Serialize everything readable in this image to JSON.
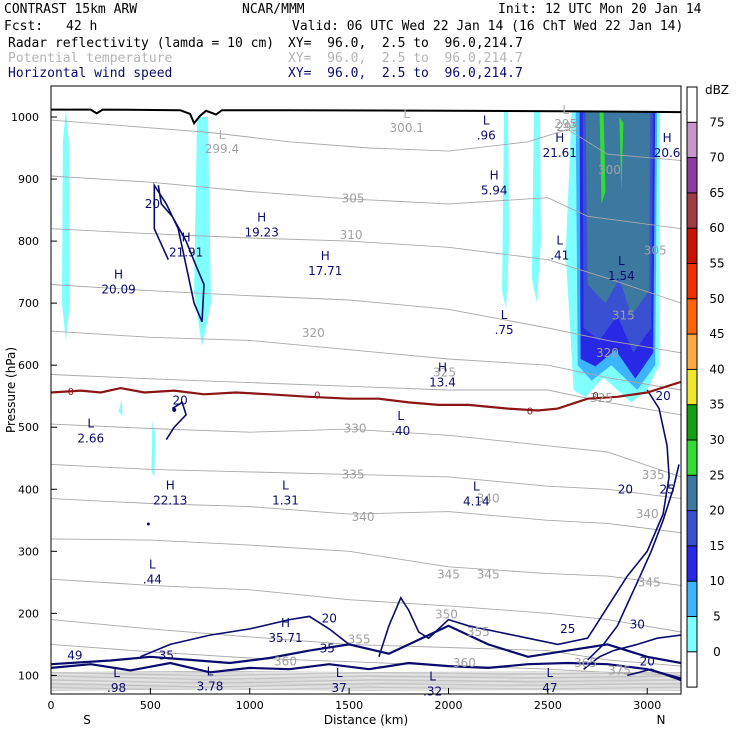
{
  "header": {
    "model": "CONTRAST 15km ARW",
    "org": "NCAR/MMM",
    "init": "Init: 12 UTC Mon 20 Jan 14",
    "fcst_label": "Fcst:",
    "fcst_value": "42 h",
    "valid": "Valid: 06 UTC Wed 22 Jan 14 (16 ChT Wed 22 Jan 14)",
    "fields": [
      {
        "name": "Radar reflectivity (lamda = 10 cm)",
        "xy": "XY=  96.0,  2.5 to  96.0,214.7"
      },
      {
        "name": "Potential temperature",
        "xy": "XY=  96.0,  2.5 to  96.0,214.7"
      },
      {
        "name": "Horizontal wind speed",
        "xy": "XY=  96.0,  2.5 to  96.0,214.7"
      }
    ]
  },
  "chart_data": {
    "type": "cross-section",
    "xlabel": "Distance (km)",
    "ylabel": "Pressure (hPa)",
    "xlim": [
      0,
      3170
    ],
    "ylim": [
      1050,
      70
    ],
    "x_ticks": [
      0,
      500,
      1000,
      1500,
      2000,
      2500,
      3000
    ],
    "y_ticks": [
      100,
      200,
      300,
      400,
      500,
      600,
      700,
      800,
      900,
      1000
    ],
    "x_end_labels": {
      "left": "S",
      "right": "N"
    },
    "colorbar": {
      "unit": "dBZ",
      "levels": [
        0,
        5,
        10,
        15,
        20,
        25,
        30,
        35,
        40,
        45,
        50,
        55,
        60,
        65,
        70,
        75
      ],
      "colors": [
        "#ffffff",
        "#80ffff",
        "#3cb4ff",
        "#2828e6",
        "#3a50d2",
        "#3c78a0",
        "#32dc32",
        "#12a012",
        "#f0e632",
        "#ffaa46",
        "#ff6400",
        "#f03200",
        "#c81400",
        "#a03c46",
        "#8c3ca0",
        "#c896c8",
        "#ffffff"
      ]
    },
    "theta_labels": [
      {
        "x": 1180,
        "p": 122,
        "v": "360"
      },
      {
        "x": 2080,
        "p": 120,
        "v": "360"
      },
      {
        "x": 2860,
        "p": 108,
        "v": "375"
      },
      {
        "x": 2690,
        "p": 120,
        "v": "365"
      },
      {
        "x": 1550,
        "p": 158,
        "v": "355"
      },
      {
        "x": 2150,
        "p": 170,
        "v": "355"
      },
      {
        "x": 1990,
        "p": 198,
        "v": "350"
      },
      {
        "x": 2000,
        "p": 263,
        "v": "345"
      },
      {
        "x": 2200,
        "p": 263,
        "v": "345"
      },
      {
        "x": 3010,
        "p": 250,
        "v": "345"
      },
      {
        "x": 1570,
        "p": 355,
        "v": "340"
      },
      {
        "x": 2200,
        "p": 385,
        "v": "340"
      },
      {
        "x": 3000,
        "p": 360,
        "v": "340"
      },
      {
        "x": 1520,
        "p": 424,
        "v": "335"
      },
      {
        "x": 3030,
        "p": 423,
        "v": "335"
      },
      {
        "x": 1530,
        "p": 498,
        "v": "330"
      },
      {
        "x": 2770,
        "p": 547,
        "v": "325"
      },
      {
        "x": 1980,
        "p": 588,
        "v": "325"
      },
      {
        "x": 1320,
        "p": 652,
        "v": "320"
      },
      {
        "x": 2800,
        "p": 620,
        "v": "320"
      },
      {
        "x": 2880,
        "p": 680,
        "v": "315"
      },
      {
        "x": 1510,
        "p": 810,
        "v": "310"
      },
      {
        "x": 3040,
        "p": 785,
        "v": "305"
      },
      {
        "x": 1520,
        "p": 869,
        "v": "305"
      },
      {
        "x": 2810,
        "p": 915,
        "v": "300"
      },
      {
        "x": 2600,
        "p": 984,
        "v": "295"
      }
    ],
    "theta_extrema": [
      {
        "x": 860,
        "p": 955,
        "kind": "L",
        "v": "299.4"
      },
      {
        "x": 1790,
        "p": 989,
        "kind": "L",
        "v": "300.1"
      },
      {
        "x": 2590,
        "p": 995,
        "kind": "L",
        "v": "295"
      }
    ],
    "wind_labels": [
      {
        "x": 580,
        "p": 132,
        "v": "35"
      },
      {
        "x": 1390,
        "p": 143,
        "v": "35"
      },
      {
        "x": 1400,
        "p": 192,
        "v": "20"
      },
      {
        "x": 2600,
        "p": 175,
        "v": "25"
      },
      {
        "x": 2950,
        "p": 182,
        "v": "30"
      },
      {
        "x": 3000,
        "p": 122,
        "v": "20"
      },
      {
        "x": 2890,
        "p": 400,
        "v": "20"
      },
      {
        "x": 3100,
        "p": 400,
        "v": "25"
      },
      {
        "x": 3080,
        "p": 550,
        "v": "20"
      },
      {
        "x": 650,
        "p": 543,
        "v": "20"
      },
      {
        "x": 510,
        "p": 860,
        "v": "20"
      },
      {
        "x": 120,
        "p": 132,
        "v": "49"
      }
    ],
    "wind_extrema": [
      {
        "x": 800,
        "p": 90,
        "kind": "L",
        "v": "3.78"
      },
      {
        "x": 1180,
        "p": 168,
        "kind": "H",
        "v": "35.71"
      },
      {
        "x": 2510,
        "p": 88,
        "kind": "L",
        "v": "47"
      },
      {
        "x": 1450,
        "p": 88,
        "kind": "L",
        "v": "37"
      },
      {
        "x": 1920,
        "p": 82,
        "kind": "L",
        "v": ".32"
      },
      {
        "x": 330,
        "p": 88,
        "kind": "L",
        "v": ".98"
      },
      {
        "x": 510,
        "p": 263,
        "kind": "L",
        "v": ".44"
      },
      {
        "x": 600,
        "p": 390,
        "kind": "H",
        "v": "22.13"
      },
      {
        "x": 1180,
        "p": 390,
        "kind": "L",
        "v": "1.31"
      },
      {
        "x": 2140,
        "p": 388,
        "kind": "L",
        "v": "4.14"
      },
      {
        "x": 200,
        "p": 490,
        "kind": "L",
        "v": "2.66"
      },
      {
        "x": 1760,
        "p": 502,
        "kind": "L",
        "v": ".40"
      },
      {
        "x": 1970,
        "p": 580,
        "kind": "H",
        "v": "13.4"
      },
      {
        "x": 2280,
        "p": 665,
        "kind": "L",
        "v": ".75"
      },
      {
        "x": 340,
        "p": 730,
        "kind": "H",
        "v": "20.09"
      },
      {
        "x": 680,
        "p": 790,
        "kind": "H",
        "v": "21.91"
      },
      {
        "x": 1380,
        "p": 760,
        "kind": "H",
        "v": "17.71"
      },
      {
        "x": 1060,
        "p": 822,
        "kind": "H",
        "v": "19.23"
      },
      {
        "x": 2560,
        "p": 785,
        "kind": "L",
        "v": ".41"
      },
      {
        "x": 2870,
        "p": 752,
        "kind": "L",
        "v": "1.54"
      },
      {
        "x": 2230,
        "p": 890,
        "kind": "H",
        "v": "5.94"
      },
      {
        "x": 2190,
        "p": 978,
        "kind": "L",
        "v": ".96"
      },
      {
        "x": 2560,
        "p": 950,
        "kind": "H",
        "v": "21.61"
      },
      {
        "x": 3100,
        "p": 950,
        "kind": "H",
        "v": "20.6"
      }
    ],
    "freezing_line_label": "0",
    "freezing_line_label_positions": [
      {
        "x": 100,
        "p": 558
      },
      {
        "x": 1340,
        "p": 553
      },
      {
        "x": 2410,
        "p": 527
      },
      {
        "x": 2740,
        "p": 552
      }
    ],
    "freezing_line": [
      [
        0,
        556
      ],
      [
        150,
        559
      ],
      [
        250,
        556
      ],
      [
        350,
        563
      ],
      [
        470,
        556
      ],
      [
        620,
        559
      ],
      [
        770,
        553
      ],
      [
        930,
        556
      ],
      [
        1100,
        553
      ],
      [
        1300,
        549
      ],
      [
        1500,
        546
      ],
      [
        1650,
        546
      ],
      [
        1800,
        540
      ],
      [
        1950,
        536
      ],
      [
        2100,
        536
      ],
      [
        2300,
        530
      ],
      [
        2450,
        527
      ],
      [
        2550,
        530
      ],
      [
        2700,
        546
      ],
      [
        2850,
        549
      ],
      [
        3000,
        556
      ],
      [
        3170,
        573
      ]
    ]
  }
}
